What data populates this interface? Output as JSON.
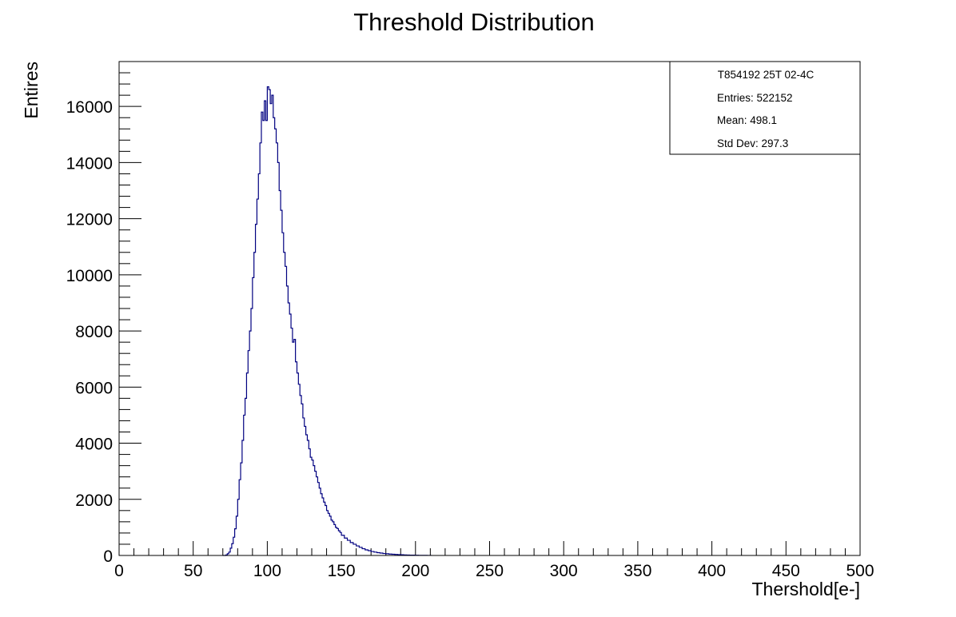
{
  "chart_data": {
    "type": "bar",
    "title": "Threshold Distribution",
    "xlabel": "Thershold[e-]",
    "ylabel": "Entires",
    "xlim": [
      0,
      500
    ],
    "ylim": [
      0,
      17600
    ],
    "xticks": [
      0,
      50,
      100,
      150,
      200,
      250,
      300,
      350,
      400,
      450,
      500
    ],
    "yticks": [
      0,
      2000,
      4000,
      6000,
      8000,
      10000,
      12000,
      14000,
      16000
    ],
    "grid": false,
    "legend": "top-right",
    "colors": {
      "line": "#000080",
      "axis": "#000000"
    },
    "stats": {
      "name": "T854192 25T 02-4C",
      "entries_label": "Entries: 522152",
      "mean_label": "Mean: 498.1",
      "stddev_label": "Std Dev: 297.3"
    },
    "bin_width": 1,
    "x": [
      70,
      71,
      72,
      73,
      74,
      75,
      76,
      77,
      78,
      79,
      80,
      81,
      82,
      83,
      84,
      85,
      86,
      87,
      88,
      89,
      90,
      91,
      92,
      93,
      94,
      95,
      96,
      97,
      98,
      99,
      100,
      101,
      102,
      103,
      104,
      105,
      106,
      107,
      108,
      109,
      110,
      111,
      112,
      113,
      114,
      115,
      116,
      117,
      118,
      119,
      120,
      121,
      122,
      123,
      124,
      125,
      126,
      127,
      128,
      129,
      130,
      131,
      132,
      133,
      134,
      135,
      136,
      137,
      138,
      139,
      140,
      141,
      142,
      143,
      144,
      145,
      146,
      147,
      148,
      149,
      150,
      152,
      154,
      156,
      158,
      160,
      162,
      164,
      166,
      168,
      170,
      172,
      174,
      176,
      178,
      180,
      182,
      184,
      186,
      188,
      190,
      192,
      194,
      196,
      198,
      200,
      202,
      204,
      206,
      208,
      210
    ],
    "values": [
      0,
      0,
      20,
      60,
      120,
      260,
      420,
      650,
      950,
      1400,
      2000,
      2700,
      3300,
      4100,
      5000,
      5600,
      6500,
      7300,
      8000,
      8800,
      9900,
      10800,
      11800,
      12700,
      13600,
      14700,
      15800,
      15500,
      16200,
      15500,
      16700,
      16600,
      16100,
      16400,
      15600,
      15200,
      14700,
      14000,
      13000,
      12300,
      11500,
      10800,
      10300,
      9600,
      9000,
      8600,
      8100,
      7600,
      7700,
      6900,
      6500,
      6100,
      5700,
      5400,
      4900,
      4600,
      4300,
      4100,
      3800,
      3500,
      3400,
      3200,
      3000,
      2800,
      2600,
      2400,
      2200,
      2050,
      1900,
      1780,
      1600,
      1500,
      1400,
      1260,
      1200,
      1100,
      1000,
      960,
      880,
      820,
      720,
      620,
      540,
      460,
      400,
      340,
      290,
      240,
      200,
      170,
      140,
      120,
      100,
      85,
      70,
      60,
      50,
      42,
      36,
      30,
      25,
      20,
      16,
      12,
      10,
      8,
      6,
      5,
      3,
      2,
      1
    ]
  }
}
